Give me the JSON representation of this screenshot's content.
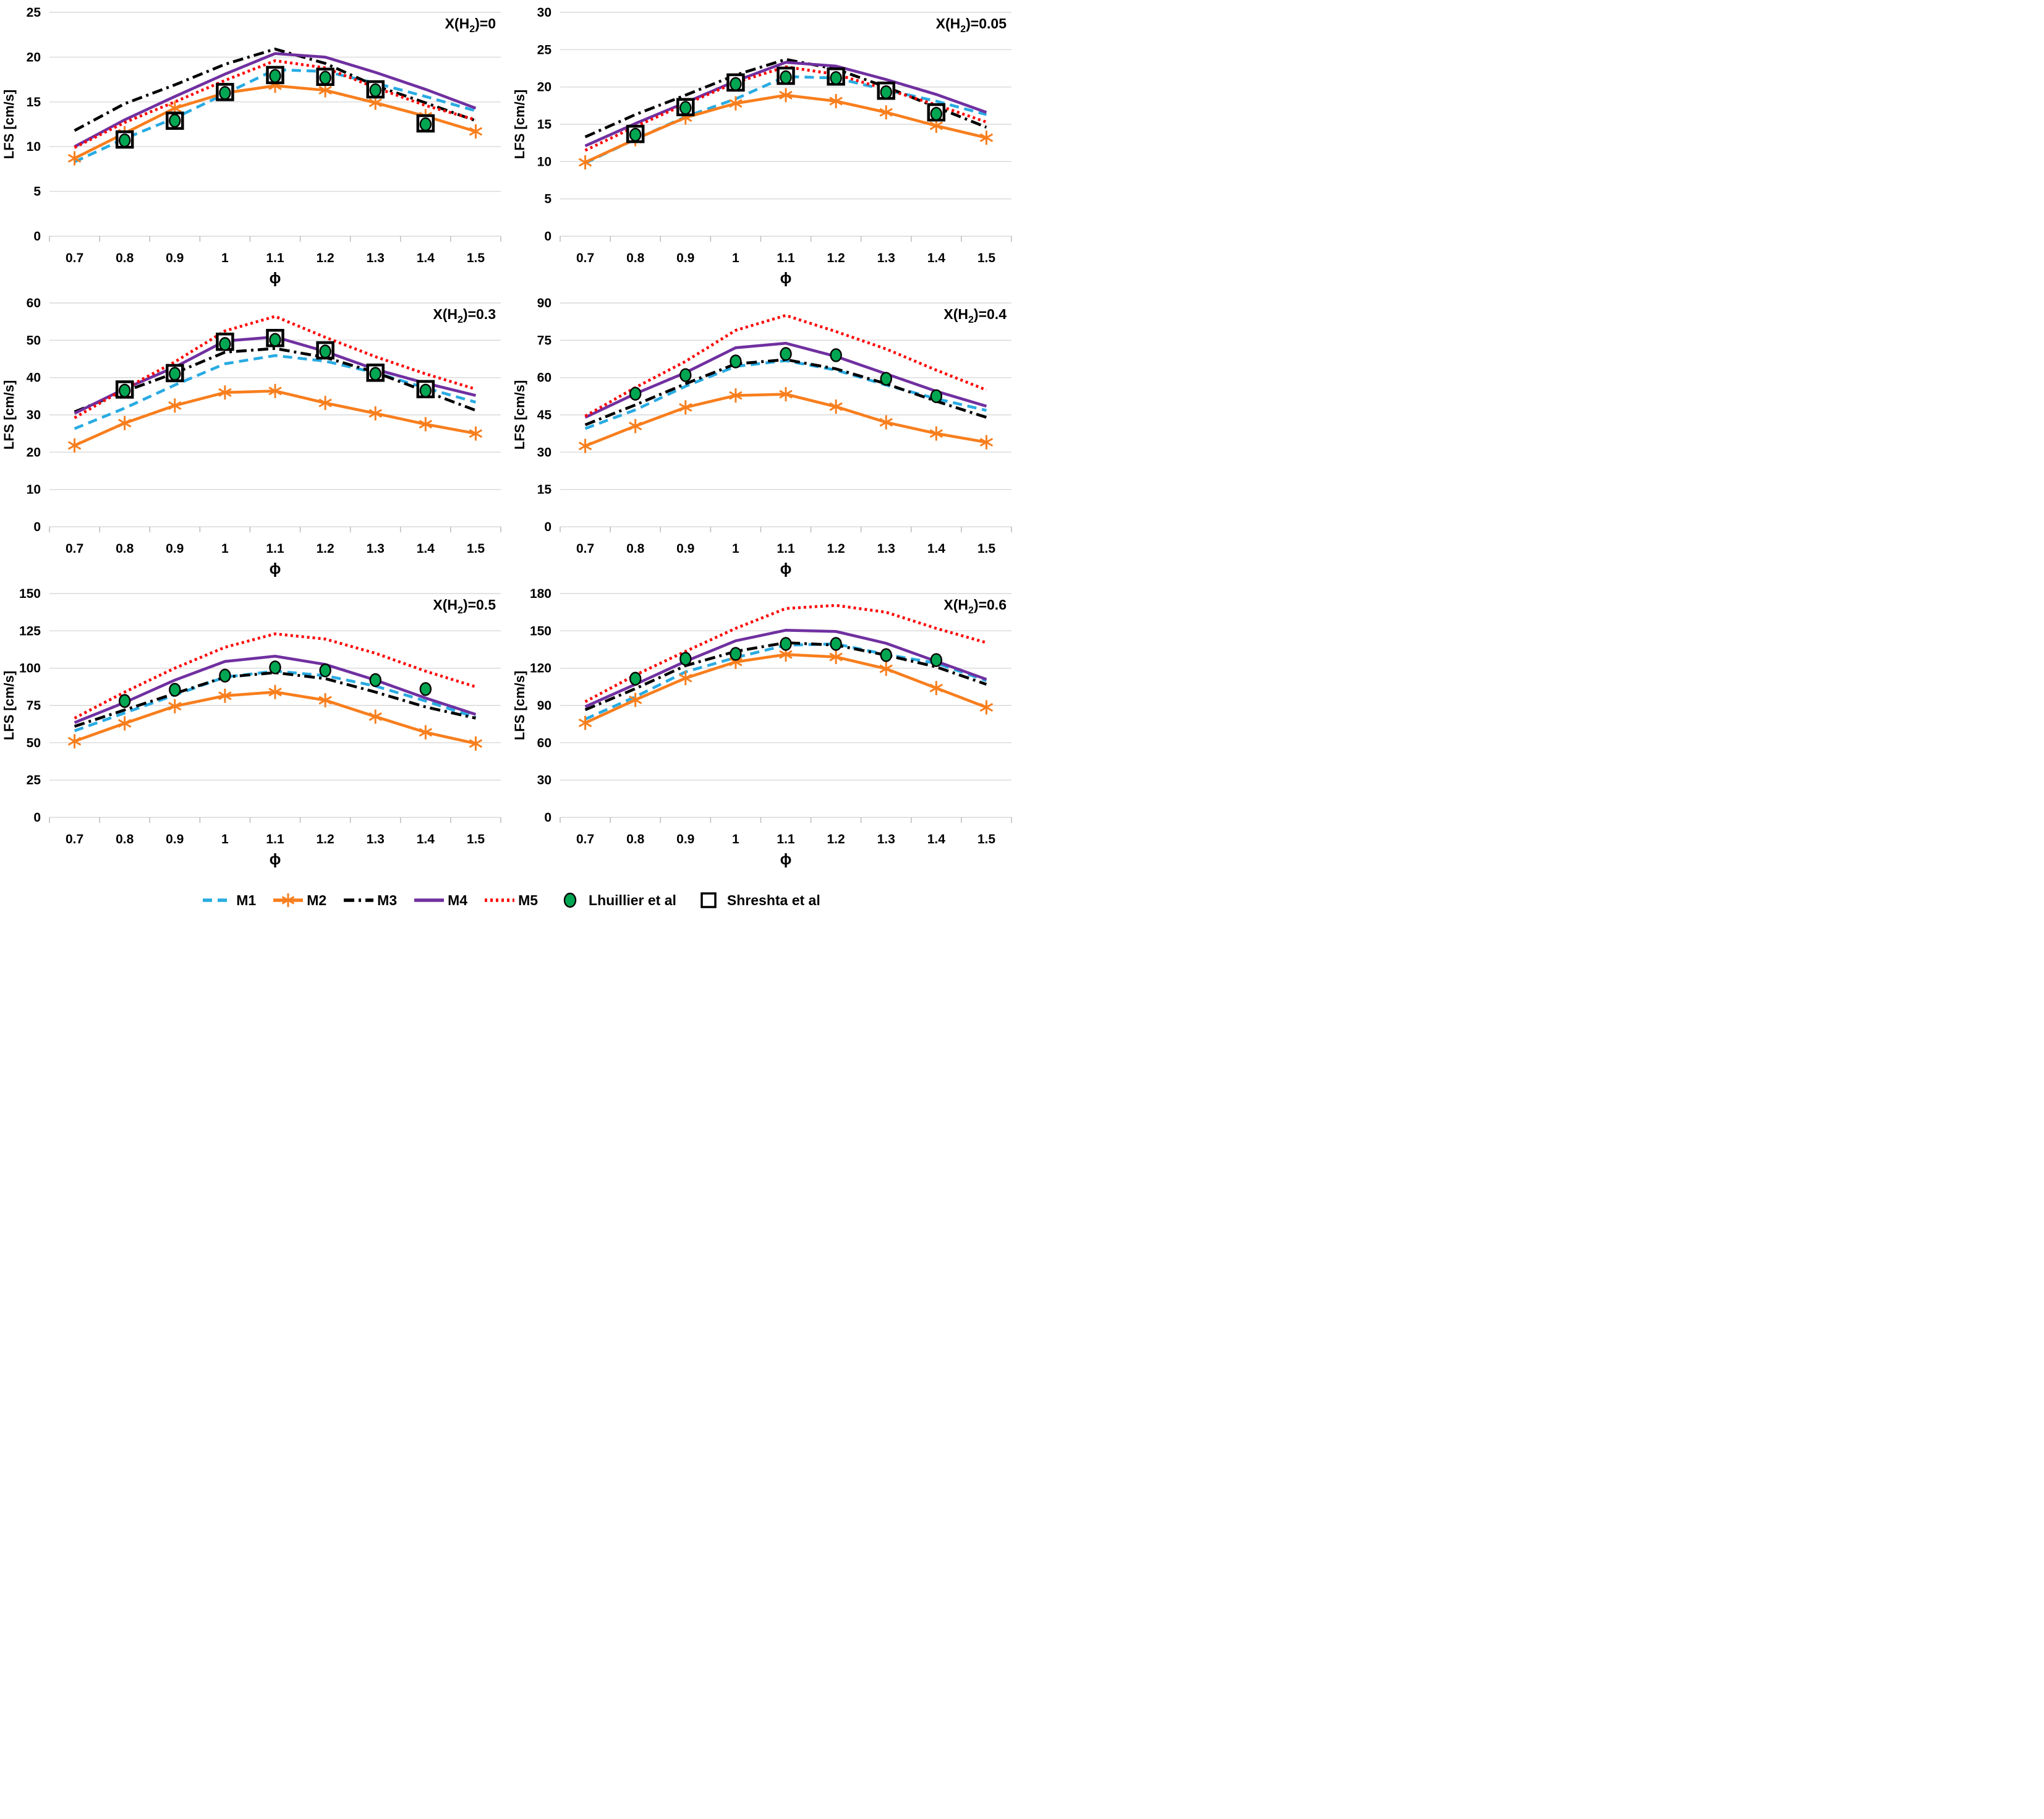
{
  "figure": {
    "x_axis_label": "ϕ",
    "y_axis_label": "LFS [cm/s]",
    "colors": {
      "M1": "#29ABE2",
      "M2": "#F87E1D",
      "M3": "#000000",
      "M4": "#7030A0",
      "M5": "#FF0000",
      "lhuillier_green": "#00A651",
      "gridline": "#D9D9D9",
      "axis_tick": "#BFBFBF",
      "text": "#000000"
    }
  },
  "legend": {
    "items": [
      {
        "id": "M1",
        "label": "M1",
        "color": "#29ABE2",
        "style": "dashed",
        "marker": "none"
      },
      {
        "id": "M2",
        "label": "M2",
        "color": "#F87E1D",
        "style": "solid",
        "marker": "star"
      },
      {
        "id": "M3",
        "label": "M3",
        "color": "#000000",
        "style": "dashdot",
        "marker": "none"
      },
      {
        "id": "M4",
        "label": "M4",
        "color": "#7030A0",
        "style": "solid",
        "marker": "none"
      },
      {
        "id": "M5",
        "label": "M5",
        "color": "#FF0000",
        "style": "dotted",
        "marker": "none"
      },
      {
        "id": "lhuillier",
        "label": "Lhuillier et al",
        "color": "#00A651",
        "style": "none",
        "marker": "circle"
      },
      {
        "id": "shreshta",
        "label": "Shreshta et al",
        "color": "#FFFFFF",
        "style": "none",
        "marker": "square"
      }
    ]
  },
  "chart_data": [
    {
      "type": "line",
      "title": {
        "pre": "X(H",
        "sub": "2",
        "post": ")=0"
      },
      "xlabel": "ϕ",
      "ylabel": "LFS [cm/s]",
      "x": [
        0.7,
        0.8,
        0.9,
        1,
        1.1,
        1.2,
        1.3,
        1.4,
        1.5
      ],
      "ylim": [
        0,
        25
      ],
      "ytick_step": 5,
      "grid": true,
      "series": [
        {
          "name": "M1",
          "color": "#29ABE2",
          "style": "dashed",
          "marker": "none",
          "values": [
            8.3,
            10.9,
            13.2,
            15.9,
            18.6,
            18.4,
            17.1,
            15.6,
            14.0
          ]
        },
        {
          "name": "M2",
          "color": "#F87E1D",
          "style": "solid",
          "marker": "star",
          "values": [
            8.7,
            11.5,
            14.3,
            16.0,
            16.8,
            16.3,
            14.9,
            13.4,
            11.7
          ]
        },
        {
          "name": "M3",
          "color": "#000000",
          "style": "dashdot",
          "marker": "none",
          "values": [
            11.8,
            14.8,
            16.9,
            19.2,
            20.9,
            19.3,
            16.8,
            14.9,
            12.9
          ]
        },
        {
          "name": "M4",
          "color": "#7030A0",
          "style": "solid",
          "marker": "none",
          "values": [
            10.0,
            13.0,
            15.6,
            18.1,
            20.4,
            20.0,
            18.3,
            16.4,
            14.3
          ]
        },
        {
          "name": "M5",
          "color": "#FF0000",
          "style": "dotted",
          "marker": "none",
          "values": [
            9.9,
            12.7,
            15.0,
            17.4,
            19.6,
            18.8,
            16.6,
            14.6,
            13.0
          ]
        }
      ],
      "experiments": [
        {
          "name": "Shreshta et al",
          "marker": "square",
          "x": [
            0.8,
            0.9,
            1,
            1.1,
            1.2,
            1.3,
            1.4
          ],
          "values": [
            10.8,
            12.9,
            16.1,
            18.0,
            17.8,
            16.4,
            12.6
          ]
        },
        {
          "name": "Lhuillier et al",
          "marker": "circle",
          "color": "#00A651",
          "x": [
            0.8,
            0.9,
            1,
            1.1,
            1.2,
            1.3,
            1.4
          ],
          "values": [
            10.7,
            12.9,
            16.0,
            17.9,
            17.7,
            16.3,
            12.5
          ]
        }
      ]
    },
    {
      "type": "line",
      "title": {
        "pre": "X(H",
        "sub": "2",
        "post": ")=0.05"
      },
      "xlabel": "ϕ",
      "ylabel": "LFS [cm/s]",
      "x": [
        0.7,
        0.8,
        0.9,
        1,
        1.1,
        1.2,
        1.3,
        1.4,
        1.5
      ],
      "ylim": [
        0,
        30
      ],
      "ytick_step": 5,
      "grid": true,
      "series": [
        {
          "name": "M1",
          "color": "#29ABE2",
          "style": "dashed",
          "marker": "none",
          "values": [
            9.8,
            13.0,
            16.0,
            18.4,
            21.4,
            21.2,
            19.6,
            18.1,
            16.3
          ]
        },
        {
          "name": "M2",
          "color": "#F87E1D",
          "style": "solid",
          "marker": "star",
          "values": [
            9.9,
            13.0,
            15.9,
            17.8,
            18.9,
            18.1,
            16.6,
            14.8,
            13.2
          ]
        },
        {
          "name": "M3",
          "color": "#000000",
          "style": "dashdot",
          "marker": "none",
          "values": [
            13.3,
            16.3,
            18.9,
            21.6,
            23.7,
            22.4,
            20.0,
            17.3,
            14.6
          ]
        },
        {
          "name": "M4",
          "color": "#7030A0",
          "style": "solid",
          "marker": "none",
          "values": [
            12.1,
            15.1,
            17.9,
            20.8,
            23.3,
            22.8,
            21.0,
            19.0,
            16.6
          ]
        },
        {
          "name": "M5",
          "color": "#FF0000",
          "style": "dotted",
          "marker": "none",
          "values": [
            11.5,
            14.7,
            17.7,
            20.6,
            22.7,
            21.7,
            19.7,
            17.6,
            15.3
          ]
        }
      ],
      "experiments": [
        {
          "name": "Shreshta et al",
          "marker": "square",
          "x": [
            0.8,
            0.9,
            1,
            1.1,
            1.2,
            1.3,
            1.4
          ],
          "values": [
            13.7,
            17.3,
            20.6,
            21.5,
            21.4,
            19.5,
            16.6
          ]
        },
        {
          "name": "Lhuillier et al",
          "marker": "circle",
          "color": "#00A651",
          "x": [
            0.8,
            0.9,
            1,
            1.1,
            1.2,
            1.3,
            1.4
          ],
          "values": [
            13.6,
            17.2,
            20.4,
            21.3,
            21.2,
            19.3,
            16.4
          ]
        }
      ]
    },
    {
      "type": "line",
      "title": {
        "pre": "X(H",
        "sub": "2",
        "post": ")=0.3"
      },
      "xlabel": "ϕ",
      "ylabel": "LFS [cm/s]",
      "x": [
        0.7,
        0.8,
        0.9,
        1,
        1.1,
        1.2,
        1.3,
        1.4,
        1.5
      ],
      "ylim": [
        0,
        60
      ],
      "ytick_step": 10,
      "grid": true,
      "series": [
        {
          "name": "M1",
          "color": "#29ABE2",
          "style": "dashed",
          "marker": "none",
          "values": [
            26.3,
            31.8,
            38.0,
            43.7,
            45.9,
            44.4,
            41.3,
            37.2,
            33.4
          ]
        },
        {
          "name": "M2",
          "color": "#F87E1D",
          "style": "solid",
          "marker": "star",
          "values": [
            21.8,
            27.8,
            32.5,
            36.0,
            36.4,
            33.2,
            30.4,
            27.5,
            25.0
          ]
        },
        {
          "name": "M3",
          "color": "#000000",
          "style": "dashdot",
          "marker": "none",
          "values": [
            30.8,
            36.3,
            41.2,
            46.8,
            47.8,
            45.4,
            41.4,
            36.3,
            31.2
          ]
        },
        {
          "name": "M4",
          "color": "#7030A0",
          "style": "solid",
          "marker": "none",
          "values": [
            30.4,
            37.0,
            42.8,
            49.8,
            50.9,
            47.0,
            42.2,
            38.5,
            35.2
          ]
        },
        {
          "name": "M5",
          "color": "#FF0000",
          "style": "dotted",
          "marker": "none",
          "values": [
            29.2,
            37.0,
            44.2,
            52.5,
            56.4,
            50.8,
            45.6,
            41.0,
            36.9
          ]
        }
      ],
      "experiments": [
        {
          "name": "Shreshta et al",
          "marker": "square",
          "x": [
            0.8,
            0.9,
            1,
            1.1,
            1.2,
            1.3,
            1.4
          ],
          "values": [
            36.8,
            41.2,
            49.6,
            50.6,
            47.3,
            41.3,
            36.9
          ]
        },
        {
          "name": "Lhuillier et al",
          "marker": "circle",
          "color": "#00A651",
          "x": [
            0.8,
            0.9,
            1,
            1.1,
            1.2,
            1.3,
            1.4
          ],
          "values": [
            36.5,
            41.0,
            49.0,
            50.1,
            47.0,
            41.0,
            36.5
          ]
        }
      ]
    },
    {
      "type": "line",
      "title": {
        "pre": "X(H",
        "sub": "2",
        "post": ")=0.4"
      },
      "xlabel": "ϕ",
      "ylabel": "LFS [cm/s]",
      "x": [
        0.7,
        0.8,
        0.9,
        1,
        1.1,
        1.2,
        1.3,
        1.4,
        1.5
      ],
      "ylim": [
        0,
        90
      ],
      "ytick_step": 15,
      "grid": true,
      "series": [
        {
          "name": "M1",
          "color": "#29ABE2",
          "style": "dashed",
          "marker": "none",
          "values": [
            39.5,
            47.0,
            56.5,
            64.5,
            66.8,
            63.0,
            57.0,
            51.5,
            46.8
          ]
        },
        {
          "name": "M2",
          "color": "#F87E1D",
          "style": "solid",
          "marker": "star",
          "values": [
            32.5,
            40.5,
            48.0,
            52.8,
            53.3,
            48.3,
            42.0,
            37.5,
            34.0
          ]
        },
        {
          "name": "M3",
          "color": "#000000",
          "style": "dashdot",
          "marker": "none",
          "values": [
            41.0,
            49.0,
            57.5,
            65.5,
            67.2,
            63.5,
            57.5,
            50.5,
            44.0
          ]
        },
        {
          "name": "M4",
          "color": "#7030A0",
          "style": "solid",
          "marker": "none",
          "values": [
            44.0,
            53.5,
            62.0,
            72.0,
            73.8,
            68.5,
            61.5,
            54.5,
            48.5
          ]
        },
        {
          "name": "M5",
          "color": "#FF0000",
          "style": "dotted",
          "marker": "none",
          "values": [
            44.5,
            56.0,
            66.5,
            79.0,
            85.0,
            78.5,
            71.5,
            63.0,
            55.0
          ]
        }
      ],
      "experiments": [
        {
          "name": "Lhuillier et al",
          "marker": "circle",
          "color": "#00A651",
          "x": [
            0.8,
            0.9,
            1,
            1.1,
            1.2,
            1.3,
            1.4
          ],
          "values": [
            53.5,
            61.0,
            66.5,
            69.5,
            69.0,
            59.5,
            52.5
          ]
        }
      ]
    },
    {
      "type": "line",
      "title": {
        "pre": "X(H",
        "sub": "2",
        "post": ")=0.5"
      },
      "xlabel": "ϕ",
      "ylabel": "LFS [cm/s]",
      "x": [
        0.7,
        0.8,
        0.9,
        1,
        1.1,
        1.2,
        1.3,
        1.4,
        1.5
      ],
      "ylim": [
        0,
        150
      ],
      "ytick_step": 25,
      "grid": true,
      "series": [
        {
          "name": "M1",
          "color": "#29ABE2",
          "style": "dashed",
          "marker": "none",
          "values": [
            58,
            70,
            82,
            94,
            98,
            95,
            88,
            78,
            67
          ]
        },
        {
          "name": "M2",
          "color": "#F87E1D",
          "style": "solid",
          "marker": "star",
          "values": [
            51,
            63,
            74.5,
            81.5,
            84,
            78.5,
            67.5,
            57,
            49.5
          ]
        },
        {
          "name": "M3",
          "color": "#000000",
          "style": "dashdot",
          "marker": "none",
          "values": [
            61,
            72,
            83,
            94,
            97,
            93,
            84,
            74,
            66.5
          ]
        },
        {
          "name": "M4",
          "color": "#7030A0",
          "style": "solid",
          "marker": "none",
          "values": [
            63.5,
            77,
            92,
            104.5,
            108,
            102.5,
            92,
            80,
            69
          ]
        },
        {
          "name": "M5",
          "color": "#FF0000",
          "style": "dotted",
          "marker": "none",
          "values": [
            66.5,
            84,
            100,
            114,
            123,
            119.5,
            110,
            98,
            87.5
          ]
        }
      ],
      "experiments": [
        {
          "name": "Lhuillier et al",
          "marker": "circle",
          "color": "#00A651",
          "x": [
            0.8,
            0.9,
            1,
            1.1,
            1.2,
            1.3,
            1.4
          ],
          "values": [
            78,
            85.5,
            95,
            100.5,
            98.5,
            92,
            86
          ]
        }
      ]
    },
    {
      "type": "line",
      "title": {
        "pre": "X(H",
        "sub": "2",
        "post": ")=0.6"
      },
      "xlabel": "ϕ",
      "ylabel": "LFS [cm/s]",
      "x": [
        0.7,
        0.8,
        0.9,
        1,
        1.1,
        1.2,
        1.3,
        1.4,
        1.5
      ],
      "ylim": [
        0,
        180
      ],
      "ytick_step": 30,
      "grid": true,
      "series": [
        {
          "name": "M1",
          "color": "#29ABE2",
          "style": "dashed",
          "marker": "none",
          "values": [
            79,
            97,
            117,
            128.5,
            138.5,
            139.5,
            131,
            124,
            110
          ]
        },
        {
          "name": "M2",
          "color": "#F87E1D",
          "style": "solid",
          "marker": "star",
          "values": [
            76,
            94.5,
            112,
            125,
            131,
            129,
            119.5,
            104,
            88.5
          ]
        },
        {
          "name": "M3",
          "color": "#000000",
          "style": "dashdot",
          "marker": "none",
          "values": [
            86.5,
            103.5,
            122,
            133.5,
            140.5,
            138.5,
            130.5,
            121,
            107
          ]
        },
        {
          "name": "M4",
          "color": "#7030A0",
          "style": "solid",
          "marker": "none",
          "values": [
            89,
            107,
            125.5,
            142,
            150.5,
            149.5,
            140,
            125.5,
            111
          ]
        },
        {
          "name": "M5",
          "color": "#FF0000",
          "style": "dotted",
          "marker": "none",
          "values": [
            93,
            114.5,
            133.5,
            152,
            168,
            170.5,
            165,
            152,
            140.5
          ]
        }
      ],
      "experiments": [
        {
          "name": "Lhuillier et al",
          "marker": "circle",
          "color": "#00A651",
          "x": [
            0.8,
            0.9,
            1,
            1.1,
            1.2,
            1.3,
            1.4
          ],
          "values": [
            111.5,
            127.5,
            131.5,
            139.5,
            139.5,
            130.5,
            126.5
          ]
        }
      ]
    }
  ]
}
